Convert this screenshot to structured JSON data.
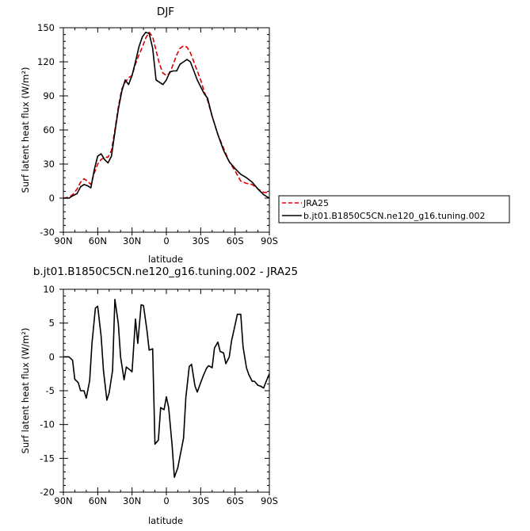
{
  "chart_data": [
    {
      "type": "line",
      "title": "DJF",
      "xlabel": "latitude",
      "ylabel": "Surf latent heat flux (W/m²)",
      "xlim": [
        90,
        -90
      ],
      "ylim": [
        -30,
        150
      ],
      "x_tick_labels": [
        "90N",
        "60N",
        "30N",
        "0",
        "30S",
        "60S",
        "90S"
      ],
      "y_tick_labels": [
        "-30",
        "0",
        "30",
        "60",
        "90",
        "120",
        "150"
      ],
      "x_tick_values": [
        90,
        60,
        30,
        0,
        -30,
        -60,
        -90
      ],
      "y_tick_values": [
        -30,
        0,
        30,
        60,
        90,
        120,
        150
      ],
      "legend_position": "bottom-right-outside",
      "series": [
        {
          "name": "JRA25",
          "color": "#dd0000",
          "style": "dashed",
          "x": [
            90,
            85,
            82,
            78,
            75,
            72,
            69,
            66,
            63,
            60,
            57,
            54,
            51,
            48,
            45,
            42,
            39,
            36,
            33,
            30,
            27,
            24,
            21,
            18,
            15,
            12,
            9,
            6,
            3,
            0,
            -3,
            -6,
            -9,
            -12,
            -15,
            -18,
            -21,
            -24,
            -27,
            -30,
            -33,
            -36,
            -40,
            -45,
            -50,
            -55,
            -60,
            -65,
            -70,
            -75,
            -80,
            -85,
            -90
          ],
          "y": [
            0,
            1,
            3,
            8,
            14,
            17,
            15,
            12,
            22,
            30,
            34,
            36,
            36,
            42,
            60,
            80,
            96,
            102,
            106,
            108,
            118,
            126,
            133,
            141,
            146,
            142,
            130,
            118,
            110,
            108,
            110,
            118,
            126,
            132,
            134,
            133,
            128,
            120,
            112,
            104,
            94,
            86,
            72,
            56,
            44,
            32,
            24,
            15,
            13,
            12,
            8,
            5,
            5
          ]
        },
        {
          "name": "b.jt01.B1850C5CN.ne120_g16.tuning.002",
          "color": "#000000",
          "style": "solid",
          "x": [
            90,
            85,
            82,
            78,
            75,
            72,
            69,
            66,
            63,
            60,
            57,
            54,
            51,
            48,
            45,
            42,
            39,
            36,
            33,
            30,
            27,
            24,
            21,
            18,
            15,
            12,
            9,
            6,
            3,
            0,
            -3,
            -6,
            -9,
            -12,
            -15,
            -18,
            -21,
            -24,
            -27,
            -30,
            -33,
            -36,
            -40,
            -45,
            -50,
            -55,
            -60,
            -65,
            -70,
            -75,
            -80,
            -85,
            -90
          ],
          "y": [
            0,
            0,
            2,
            4,
            10,
            12,
            11,
            9,
            25,
            37,
            39,
            34,
            31,
            37,
            58,
            78,
            94,
            104,
            100,
            108,
            120,
            133,
            142,
            146,
            145,
            132,
            104,
            102,
            100,
            104,
            111,
            112,
            112,
            118,
            120,
            122,
            120,
            112,
            104,
            98,
            92,
            88,
            72,
            56,
            42,
            32,
            26,
            21,
            18,
            14,
            8,
            3,
            0
          ]
        }
      ]
    },
    {
      "type": "line",
      "title": "b.jt01.B1850C5CN.ne120_g16.tuning.002 - JRA25",
      "xlabel": "latitude",
      "ylabel": "Surf latent heat flux (W/m²)",
      "xlim": [
        90,
        -90
      ],
      "ylim": [
        -20,
        10
      ],
      "x_tick_labels": [
        "90N",
        "60N",
        "30N",
        "0",
        "30S",
        "60S",
        "90S"
      ],
      "y_tick_labels": [
        "-20",
        "-15",
        "-10",
        "-5",
        "0",
        "5",
        "10"
      ],
      "x_tick_values": [
        90,
        60,
        30,
        0,
        -30,
        -60,
        -90
      ],
      "y_tick_values": [
        -20,
        -15,
        -10,
        -5,
        0,
        5,
        10
      ],
      "series": [
        {
          "color": "#000000",
          "style": "solid",
          "x": [
            90,
            87,
            85,
            82,
            80,
            77,
            75,
            72,
            70,
            67,
            65,
            62,
            60,
            57,
            55,
            52,
            50,
            47,
            45,
            42,
            40,
            37,
            35,
            32,
            30,
            27,
            25,
            22,
            20,
            17,
            15,
            12,
            10,
            7,
            5,
            2,
            0,
            -2,
            -5,
            -7,
            -10,
            -15,
            -17,
            -20,
            -22,
            -25,
            -27,
            -30,
            -32,
            -35,
            -37,
            -40,
            -42,
            -45,
            -47,
            -50,
            -52,
            -55,
            -57,
            -60,
            -62,
            -65,
            -67,
            -70,
            -72,
            -75,
            -77,
            -80,
            -82,
            -85,
            -87,
            -90
          ],
          "y": [
            0,
            0,
            0,
            -0.5,
            -3.3,
            -3.8,
            -5,
            -5,
            -6.1,
            -3.5,
            2,
            7.2,
            7.5,
            3,
            -2,
            -6.4,
            -5.3,
            -2,
            8.5,
            5,
            0,
            -3.4,
            -1.5,
            -1.9,
            -2.2,
            5.6,
            2,
            7.7,
            7.6,
            4,
            1,
            1.2,
            -12.9,
            -12.3,
            -7.5,
            -7.8,
            -5.9,
            -7.5,
            -13,
            -17.8,
            -16.4,
            -12,
            -6,
            -1.4,
            -1.1,
            -4.3,
            -5.2,
            -3.8,
            -2.9,
            -1.7,
            -1.3,
            -1.6,
            1.3,
            2.2,
            0.8,
            0.6,
            -1,
            0,
            2.4,
            4.7,
            6.3,
            6.3,
            1.5,
            -1.6,
            -2.6,
            -3.6,
            -3.6,
            -4.2,
            -4.3,
            -4.6,
            -3.7,
            -2.5
          ]
        }
      ]
    }
  ]
}
